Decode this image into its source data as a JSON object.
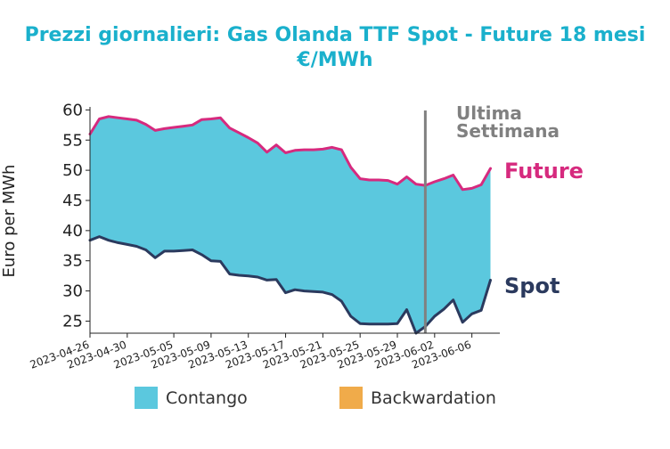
{
  "chart_data": {
    "type": "area",
    "title": "Prezzi giornalieri: Gas Olanda TTF Spot - Future 18 mesi",
    "subtitle": "€/MWh",
    "ylabel": "Euro per MWh",
    "xlabel": "",
    "ylim": [
      23,
      60.5
    ],
    "yticks": [
      25,
      30,
      35,
      40,
      45,
      50,
      55,
      60
    ],
    "x_start": "2023-04-26",
    "x_end": "2023-06-09",
    "xticks": [
      "2023-04-26",
      "2023-04-30",
      "2023-05-05",
      "2023-05-09",
      "2023-05-13",
      "2023-05-17",
      "2023-05-21",
      "2023-05-25",
      "2023-05-29",
      "2023-06-02",
      "2023-06-06"
    ],
    "series": [
      {
        "name": "Future",
        "color": "#d62a7e",
        "points": [
          [
            "2023-04-26",
            56.0
          ],
          [
            "2023-04-27",
            58.5
          ],
          [
            "2023-04-28",
            58.9
          ],
          [
            "2023-04-29",
            58.7
          ],
          [
            "2023-04-30",
            58.5
          ],
          [
            "2023-05-01",
            58.3
          ],
          [
            "2023-05-02",
            57.6
          ],
          [
            "2023-05-03",
            56.6
          ],
          [
            "2023-05-04",
            56.9
          ],
          [
            "2023-05-05",
            57.1
          ],
          [
            "2023-05-06",
            57.3
          ],
          [
            "2023-05-07",
            57.5
          ],
          [
            "2023-05-08",
            58.4
          ],
          [
            "2023-05-09",
            58.5
          ],
          [
            "2023-05-10",
            58.7
          ],
          [
            "2023-05-11",
            57.0
          ],
          [
            "2023-05-12",
            56.2
          ],
          [
            "2023-05-13",
            55.4
          ],
          [
            "2023-05-14",
            54.5
          ],
          [
            "2023-05-15",
            53.0
          ],
          [
            "2023-05-16",
            54.2
          ],
          [
            "2023-05-17",
            52.9
          ],
          [
            "2023-05-18",
            53.3
          ],
          [
            "2023-05-19",
            53.4
          ],
          [
            "2023-05-20",
            53.4
          ],
          [
            "2023-05-21",
            53.5
          ],
          [
            "2023-05-22",
            53.8
          ],
          [
            "2023-05-23",
            53.4
          ],
          [
            "2023-05-24",
            50.5
          ],
          [
            "2023-05-25",
            48.6
          ],
          [
            "2023-05-26",
            48.4
          ],
          [
            "2023-05-27",
            48.4
          ],
          [
            "2023-05-28",
            48.3
          ],
          [
            "2023-05-29",
            47.7
          ],
          [
            "2023-05-30",
            48.9
          ],
          [
            "2023-05-31",
            47.7
          ],
          [
            "2023-06-01",
            47.5
          ],
          [
            "2023-06-02",
            48.1
          ],
          [
            "2023-06-03",
            48.6
          ],
          [
            "2023-06-04",
            49.2
          ],
          [
            "2023-06-05",
            46.8
          ],
          [
            "2023-06-06",
            47.0
          ],
          [
            "2023-06-07",
            47.6
          ],
          [
            "2023-06-08",
            50.3
          ]
        ]
      },
      {
        "name": "Spot",
        "color": "#2b3a5e",
        "points": [
          [
            "2023-04-26",
            38.4
          ],
          [
            "2023-04-27",
            39.0
          ],
          [
            "2023-04-28",
            38.4
          ],
          [
            "2023-04-29",
            38.0
          ],
          [
            "2023-04-30",
            37.7
          ],
          [
            "2023-05-01",
            37.4
          ],
          [
            "2023-05-02",
            36.8
          ],
          [
            "2023-05-03",
            35.5
          ],
          [
            "2023-05-04",
            36.6
          ],
          [
            "2023-05-05",
            36.6
          ],
          [
            "2023-05-06",
            36.7
          ],
          [
            "2023-05-07",
            36.8
          ],
          [
            "2023-05-08",
            36.0
          ],
          [
            "2023-05-09",
            35.0
          ],
          [
            "2023-05-10",
            34.9
          ],
          [
            "2023-05-11",
            32.8
          ],
          [
            "2023-05-12",
            32.6
          ],
          [
            "2023-05-13",
            32.5
          ],
          [
            "2023-05-14",
            32.3
          ],
          [
            "2023-05-15",
            31.8
          ],
          [
            "2023-05-16",
            31.9
          ],
          [
            "2023-05-17",
            29.7
          ],
          [
            "2023-05-18",
            30.2
          ],
          [
            "2023-05-19",
            30.0
          ],
          [
            "2023-05-20",
            29.9
          ],
          [
            "2023-05-21",
            29.8
          ],
          [
            "2023-05-22",
            29.4
          ],
          [
            "2023-05-23",
            28.3
          ],
          [
            "2023-05-24",
            25.8
          ],
          [
            "2023-05-25",
            24.6
          ],
          [
            "2023-05-26",
            24.5
          ],
          [
            "2023-05-27",
            24.5
          ],
          [
            "2023-05-28",
            24.5
          ],
          [
            "2023-05-29",
            24.6
          ],
          [
            "2023-05-30",
            26.9
          ],
          [
            "2023-05-31",
            23.0
          ],
          [
            "2023-06-01",
            24.1
          ],
          [
            "2023-06-02",
            25.8
          ],
          [
            "2023-06-03",
            27.0
          ],
          [
            "2023-06-04",
            28.5
          ],
          [
            "2023-06-05",
            24.8
          ],
          [
            "2023-06-06",
            26.2
          ],
          [
            "2023-06-07",
            26.8
          ],
          [
            "2023-06-08",
            31.8
          ]
        ]
      }
    ],
    "fill": {
      "contango_color": "#5bc8de",
      "backwardation_color": "#f0ab4a"
    },
    "legend": {
      "position": "bottom",
      "items": [
        {
          "label": "Contango",
          "color": "#5bc8de"
        },
        {
          "label": "Backwardation",
          "color": "#f0ab4a"
        }
      ]
    },
    "annotations": {
      "vline_date": "2023-06-01",
      "vline_color": "#808080",
      "week_label_lines": [
        "Ultima",
        "Settimana"
      ]
    },
    "grid": false
  }
}
